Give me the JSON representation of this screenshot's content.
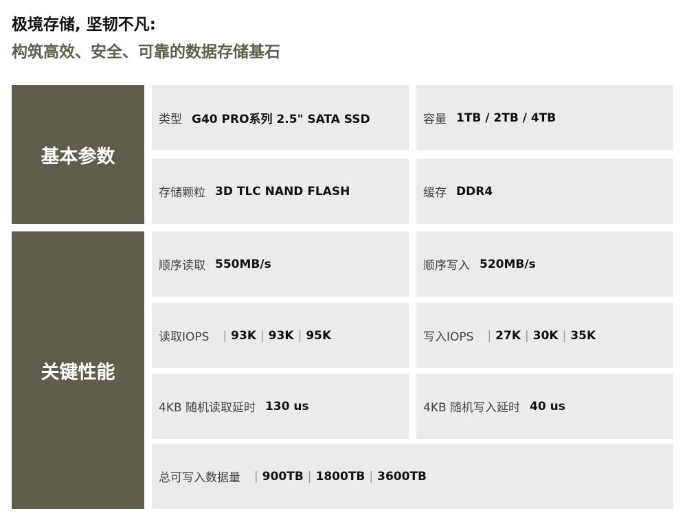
{
  "title_line1": "极境存储, 坚韧不凡:",
  "title_line2": "构筑高效、安全、可靠的数据存储基石",
  "sections": [
    {
      "label": "基本参数",
      "cells": [
        {
          "label": "类型",
          "values": [
            "G40 PRO系列 2.5\" SATA SSD"
          ]
        },
        {
          "label": "容量",
          "values": [
            "1TB / 2TB / 4TB"
          ]
        },
        {
          "label": "存储颗粒",
          "values": [
            "3D TLC NAND FLASH"
          ]
        },
        {
          "label": "缓存",
          "values": [
            "DDR4"
          ]
        }
      ]
    },
    {
      "label": "关键性能",
      "cells": [
        {
          "label": "顺序读取",
          "values": [
            "550MB/s"
          ]
        },
        {
          "label": "顺序写入",
          "values": [
            "520MB/s"
          ]
        },
        {
          "label": "读取IOPS",
          "values": [
            "93K",
            "93K",
            "95K"
          ]
        },
        {
          "label": "写入IOPS",
          "values": [
            "27K",
            "30K",
            "35K"
          ]
        },
        {
          "label": "4KB 随机读取延时",
          "values": [
            "130 us"
          ]
        },
        {
          "label": "4KB 随机写入延时",
          "values": [
            "40 us"
          ]
        },
        {
          "label": "总可写入数据量",
          "values": [
            "900TB",
            "1800TB",
            "3600TB"
          ]
        }
      ]
    }
  ],
  "colors": {
    "accent": "#5f5e4c",
    "cell_bg": "#ebebeb"
  }
}
